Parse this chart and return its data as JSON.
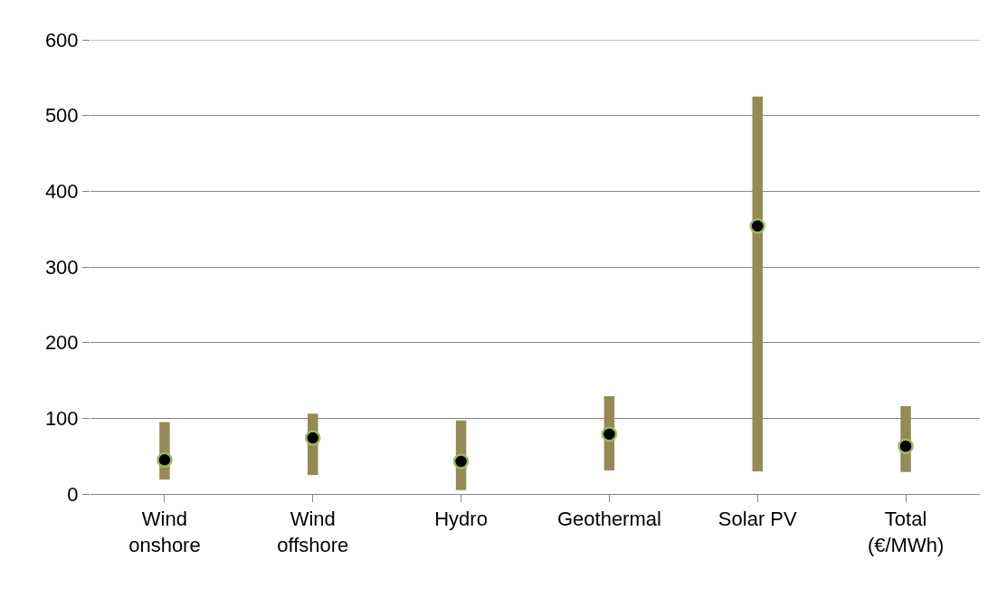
{
  "chart_data": {
    "type": "bar",
    "categories": [
      "Wind\nonshore",
      "Wind\noffshore",
      "Hydro",
      "Geothermal",
      "Solar PV",
      "Total\n(€/MWh)"
    ],
    "series": [
      {
        "color": "#948a54",
        "base": [
          19,
          25,
          5,
          31,
          30,
          29
        ],
        "values": [
          76,
          81,
          92,
          98,
          495,
          87
        ]
      },
      {
        "type": "scatter",
        "color": "#000000",
        "values": [
          45,
          74,
          43,
          79,
          354,
          63
        ]
      }
    ],
    "ylim": [
      0,
      600
    ],
    "yticks": [
      0,
      100,
      200,
      300,
      400,
      500,
      600
    ],
    "grid": "y",
    "marker": "circle"
  }
}
